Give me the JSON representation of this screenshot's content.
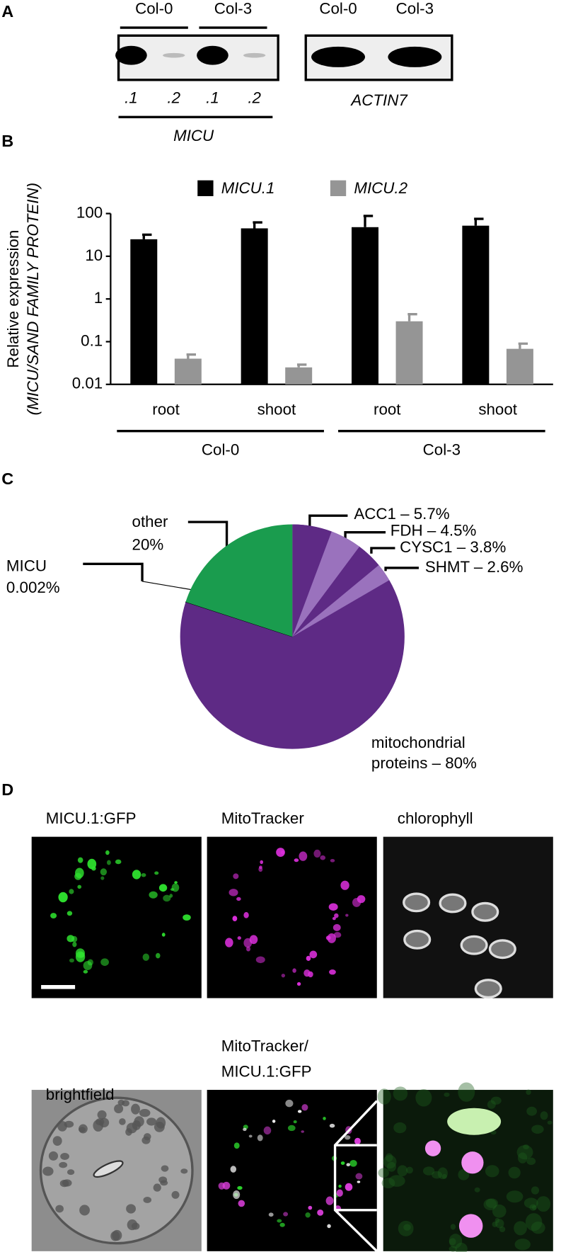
{
  "panels": [
    "A",
    "B",
    "C",
    "D"
  ],
  "gel": {
    "blots": [
      {
        "lanes_header": [
          "Col-0",
          "Col-3"
        ],
        "lane_labels": [
          ".1",
          ".2",
          ".1",
          ".2"
        ],
        "gene": "MICU"
      },
      {
        "lanes_header": [
          "Col-0",
          "Col-3"
        ],
        "gene": "ACTIN7"
      }
    ]
  },
  "chart_data": [
    {
      "type": "bar",
      "y_label": [
        "Relative expression",
        "(MICU/SAND FAMILY PROTEIN)"
      ],
      "categories": [
        "root",
        "shoot",
        "root",
        "shoot"
      ],
      "groups": [
        "Col-0",
        "Col-3"
      ],
      "series": [
        {
          "name": "MICU.1",
          "color": "#000000",
          "values": [
            25,
            45,
            48,
            52
          ],
          "errors": [
            7,
            17,
            40,
            23
          ]
        },
        {
          "name": "MICU.2",
          "color": "#959595",
          "values": [
            0.04,
            0.025,
            0.3,
            0.068
          ],
          "errors": [
            0.01,
            0.004,
            0.14,
            0.022
          ]
        }
      ],
      "ylim": [
        0.01,
        100
      ],
      "yticks": [
        0.01,
        0.1,
        1,
        10,
        100
      ],
      "log_scale": true,
      "grid": false
    },
    {
      "type": "pie",
      "slices": [
        {
          "label": [
            "mitochondrial",
            "proteins – 80%"
          ],
          "value": 80,
          "color": "#5e2a85",
          "parts": [
            {
              "label": [
                "ACC1 – 5.7%"
              ],
              "value": 5.7,
              "color": "#5e2a85"
            },
            {
              "label": [
                "FDH – 4.5%"
              ],
              "value": 4.5,
              "color": "#9a72bd"
            },
            {
              "label": [
                "CYSC1 – 3.8%"
              ],
              "value": 3.8,
              "color": "#5e2a85"
            },
            {
              "label": [
                "SHMT – 2.6%"
              ],
              "value": 2.6,
              "color": "#9a72bd"
            }
          ]
        },
        {
          "label": [
            "MICU",
            "0.002%"
          ],
          "value": 0.002,
          "color": "#000000"
        },
        {
          "label": [
            "other",
            "20%"
          ],
          "value": 20,
          "color": "#1a9c4e"
        }
      ],
      "label_colors": [
        "#6b2f95",
        "#6b2f95",
        "#1ea14b"
      ]
    }
  ],
  "microscopy": {
    "labels": [
      [
        "MICU.1:GFP"
      ],
      [
        "MitoTracker"
      ],
      [
        "chlorophyll"
      ],
      [
        "brightfield"
      ],
      [
        "MitoTracker/",
        "MICU.1:GFP"
      ]
    ]
  }
}
